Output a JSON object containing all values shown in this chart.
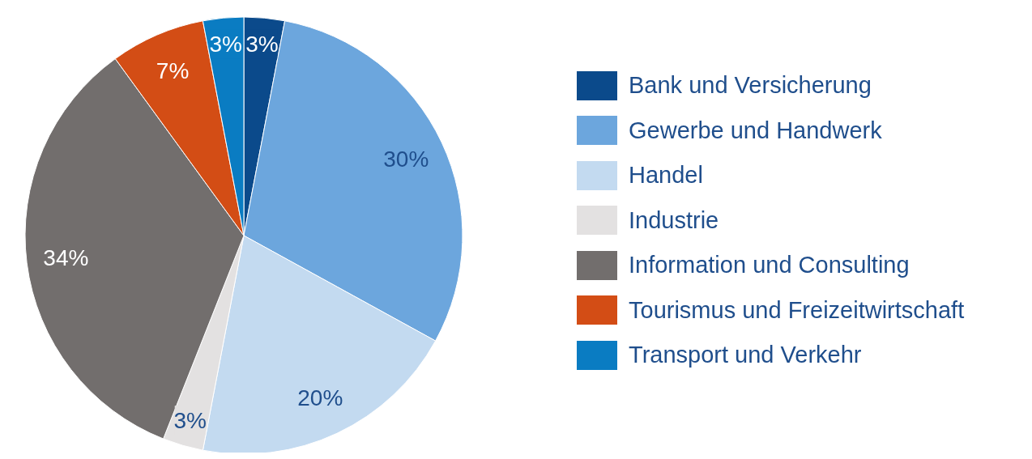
{
  "chart_data": {
    "type": "pie",
    "categories": [
      "Bank und Versicherung",
      "Gewerbe und Handwerk",
      "Handel",
      "Industrie",
      "Information und Consulting",
      "Tourismus und Freizeitwirtschaft",
      "Transport und Verkehr"
    ],
    "values": [
      3,
      30,
      20,
      3,
      34,
      7,
      3
    ],
    "colors": [
      "#0b4a8b",
      "#6ca6dd",
      "#c3daf0",
      "#e3e1e1",
      "#726e6d",
      "#d34d15",
      "#0a7cc2"
    ],
    "value_labels": [
      "3%",
      "30%",
      "20%",
      "3%",
      "34%",
      "7%",
      "3%"
    ],
    "legend": "right"
  }
}
